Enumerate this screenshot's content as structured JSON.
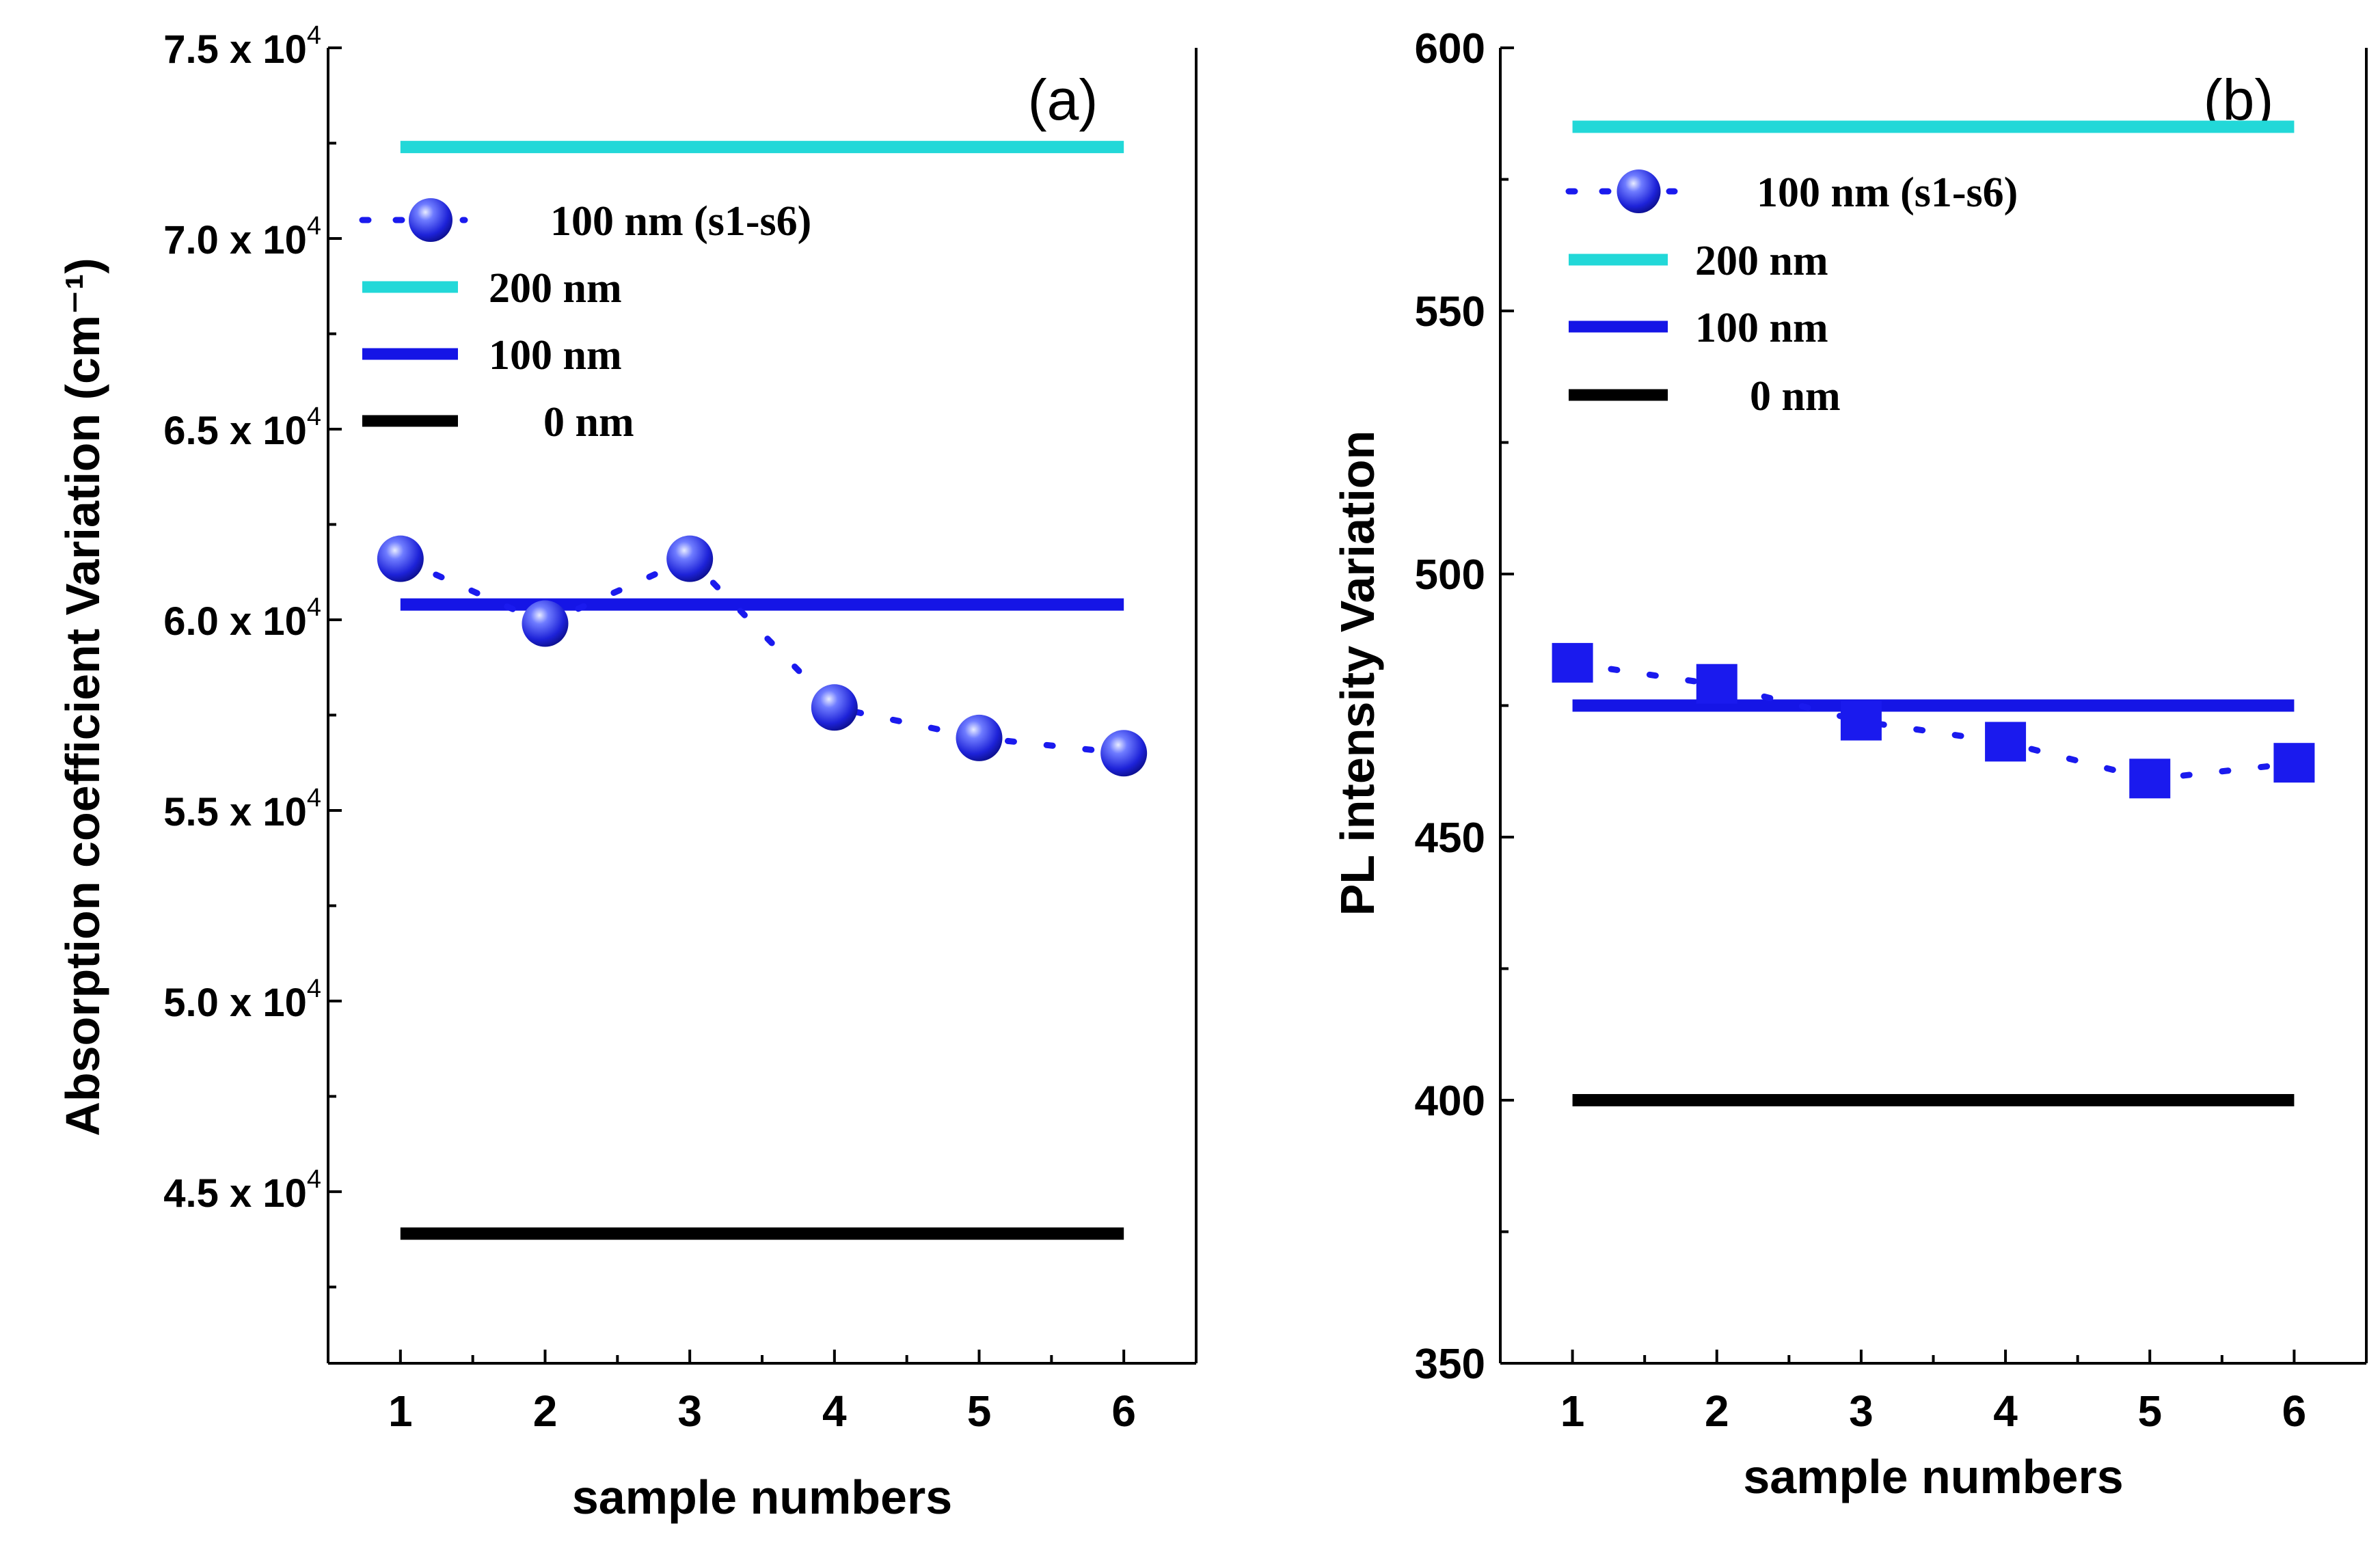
{
  "figure": {
    "panels": [
      "(a)",
      "(b)"
    ]
  },
  "chart_data": [
    {
      "type": "line",
      "panel_label": "(a)",
      "title": "",
      "xlabel": "sample numbers",
      "ylabel": "Absorption coefficient Variation (cm⁻¹)",
      "x": [
        1,
        2,
        3,
        4,
        5,
        6
      ],
      "xlim": [
        0.5,
        6.5
      ],
      "ylim": [
        40500,
        75000
      ],
      "xticks": [
        "1",
        "2",
        "3",
        "4",
        "5",
        "6"
      ],
      "yticks": [
        {
          "value": 45000,
          "mantissa": "4.5",
          "base": "x 10",
          "exp": "4"
        },
        {
          "value": 50000,
          "mantissa": "5.0",
          "base": "x 10",
          "exp": "4"
        },
        {
          "value": 55000,
          "mantissa": "5.5",
          "base": "x 10",
          "exp": "4"
        },
        {
          "value": 60000,
          "mantissa": "6.0",
          "base": "x 10",
          "exp": "4"
        },
        {
          "value": 65000,
          "mantissa": "6.5",
          "base": "x 10",
          "exp": "4"
        },
        {
          "value": 70000,
          "mantissa": "7.0",
          "base": "x 10",
          "exp": "4"
        },
        {
          "value": 75000,
          "mantissa": "7.5",
          "base": "x 10",
          "exp": "4"
        }
      ],
      "series": [
        {
          "name": "100 nm (s1-s6)",
          "kind": "markers-dotted",
          "marker": "sphere",
          "color": "#1a1aee",
          "values": [
            61600,
            59900,
            61600,
            57700,
            56900,
            56500
          ]
        },
        {
          "name": "200 nm",
          "kind": "hline",
          "color": "#22d8d8",
          "value": 72400
        },
        {
          "name": "100 nm",
          "kind": "hline",
          "color": "#1515e6",
          "value": 60400
        },
        {
          "name": "0 nm",
          "kind": "hline",
          "color": "#000000",
          "value": 43900
        }
      ],
      "legend": "upper-left"
    },
    {
      "type": "line",
      "panel_label": "(b)",
      "title": "",
      "xlabel": "sample numbers",
      "ylabel": "PL intensity Variation",
      "x": [
        1,
        2,
        3,
        4,
        5,
        6
      ],
      "xlim": [
        0.5,
        6.5
      ],
      "ylim": [
        350,
        600
      ],
      "xticks": [
        "1",
        "2",
        "3",
        "4",
        "5",
        "6"
      ],
      "yticks": [
        {
          "value": 350,
          "mantissa": "350"
        },
        {
          "value": 400,
          "mantissa": "400"
        },
        {
          "value": 450,
          "mantissa": "450"
        },
        {
          "value": 500,
          "mantissa": "500"
        },
        {
          "value": 550,
          "mantissa": "550"
        },
        {
          "value": 600,
          "mantissa": "600"
        }
      ],
      "series": [
        {
          "name": "100 nm (s1-s6)",
          "kind": "markers-dotted",
          "marker": "square",
          "color": "#1a1aee",
          "values": [
            483,
            479,
            472,
            468,
            461,
            464
          ]
        },
        {
          "name": "200 nm",
          "kind": "hline",
          "color": "#22d8d8",
          "value": 585
        },
        {
          "name": "100 nm",
          "kind": "hline",
          "color": "#1515e6",
          "value": 475
        },
        {
          "name": "0 nm",
          "kind": "hline",
          "color": "#000000",
          "value": 400
        }
      ],
      "legend": "upper-left"
    }
  ]
}
